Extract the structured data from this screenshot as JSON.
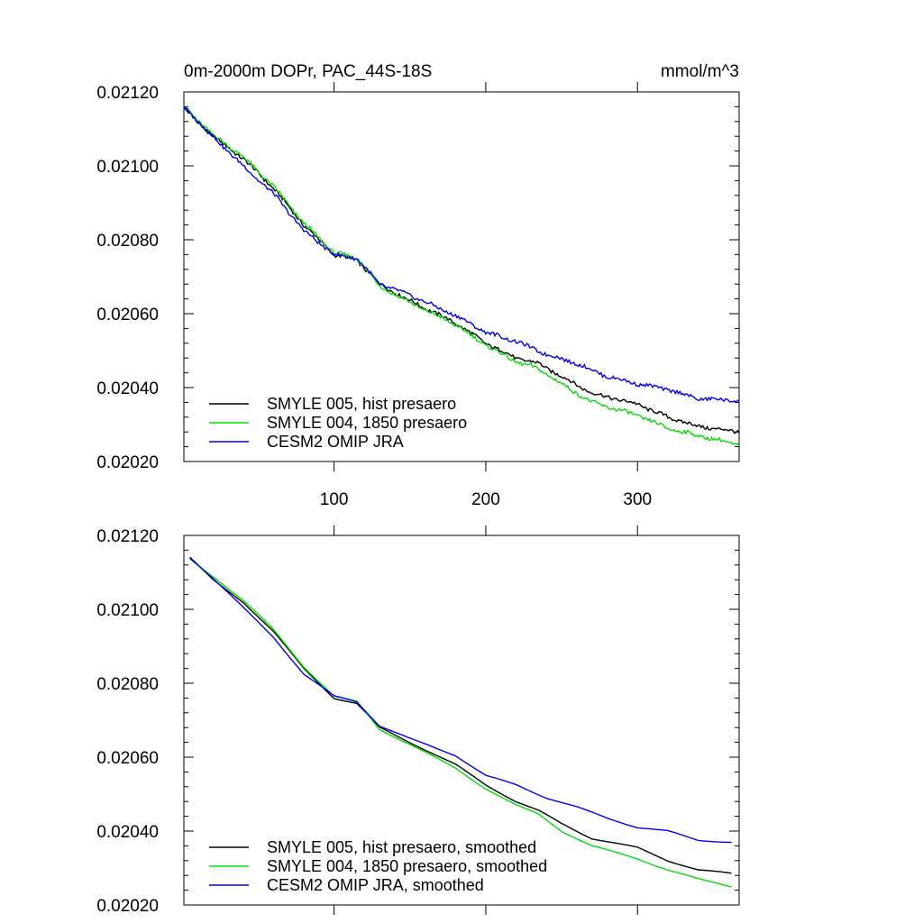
{
  "figure": {
    "title_left": "0m-2000m DOPr, PAC_44S-18S",
    "title_right": "mmol/m^3"
  },
  "chart_data": [
    {
      "type": "line",
      "xlim": [
        1,
        367
      ],
      "ylim": [
        0.0202,
        0.0212
      ],
      "xticks": [
        100,
        200,
        300
      ],
      "xtick_labels": [
        "100",
        "200",
        "300"
      ],
      "show_xtick_labels": true,
      "yticks": [
        0.0202,
        0.0204,
        0.0206,
        0.0208,
        0.021,
        0.0212
      ],
      "ytick_labels": [
        "0.02020",
        "0.02040",
        "0.02060",
        "0.02080",
        "0.02100",
        "0.02120"
      ],
      "grid": false,
      "legend_position": "bottom-left",
      "smoothed": false,
      "series": [
        {
          "name": "SMYLE 005, hist presaero",
          "color": "#000000",
          "x": [
            1,
            20,
            40,
            60,
            80,
            100,
            115,
            130,
            150,
            180,
            200,
            220,
            235,
            250,
            270,
            300,
            320,
            340,
            367
          ],
          "y": [
            0.021155,
            0.02108,
            0.02102,
            0.02094,
            0.02084,
            0.02076,
            0.020745,
            0.02068,
            0.020635,
            0.020575,
            0.02052,
            0.02048,
            0.020465,
            0.02043,
            0.020385,
            0.020355,
            0.02032,
            0.020295,
            0.02028
          ]
        },
        {
          "name": "SMYLE 004, 1850 presaero",
          "color": "#00dd00",
          "x": [
            1,
            20,
            40,
            60,
            80,
            100,
            115,
            130,
            150,
            180,
            200,
            220,
            235,
            250,
            270,
            300,
            320,
            340,
            367
          ],
          "y": [
            0.02116,
            0.021085,
            0.021025,
            0.020945,
            0.020845,
            0.020765,
            0.02075,
            0.020675,
            0.02063,
            0.02057,
            0.020515,
            0.02047,
            0.02045,
            0.02041,
            0.02036,
            0.020325,
            0.02029,
            0.02027,
            0.020245
          ]
        },
        {
          "name": "CESM2 OMIP JRA",
          "color": "#0000ee",
          "x": [
            1,
            20,
            40,
            60,
            80,
            100,
            115,
            130,
            150,
            180,
            200,
            220,
            240,
            260,
            280,
            300,
            320,
            340,
            367
          ],
          "y": [
            0.02116,
            0.02108,
            0.021,
            0.020925,
            0.020825,
            0.02076,
            0.02075,
            0.02068,
            0.02065,
            0.020595,
            0.02055,
            0.020525,
            0.02049,
            0.020465,
            0.02043,
            0.02041,
            0.020395,
            0.02037,
            0.020365
          ]
        }
      ]
    },
    {
      "type": "line",
      "xlim": [
        1,
        367
      ],
      "ylim": [
        0.0202,
        0.0212
      ],
      "xticks": [
        100,
        200,
        300
      ],
      "xtick_labels": [
        "100",
        "200",
        "300"
      ],
      "show_xtick_labels": false,
      "yticks": [
        0.0202,
        0.0204,
        0.0206,
        0.0208,
        0.021,
        0.0212
      ],
      "ytick_labels": [
        "0.02020",
        "0.02040",
        "0.02060",
        "0.02080",
        "0.02100",
        "0.02120"
      ],
      "grid": false,
      "legend_position": "bottom-left",
      "smoothed": true,
      "series": [
        {
          "name": "SMYLE 005, hist presaero, smoothed",
          "color": "#000000",
          "x": [
            5,
            20,
            40,
            60,
            80,
            100,
            115,
            130,
            150,
            180,
            200,
            220,
            235,
            250,
            270,
            300,
            320,
            340,
            362
          ],
          "y": [
            0.02114,
            0.02108,
            0.02102,
            0.02094,
            0.02084,
            0.02076,
            0.020745,
            0.02068,
            0.02064,
            0.02058,
            0.020525,
            0.02048,
            0.020455,
            0.02042,
            0.02038,
            0.020355,
            0.02032,
            0.020295,
            0.020285
          ]
        },
        {
          "name": "SMYLE 004, 1850 presaero, smoothed",
          "color": "#00dd00",
          "x": [
            5,
            20,
            40,
            60,
            80,
            100,
            115,
            130,
            150,
            180,
            200,
            220,
            235,
            250,
            270,
            300,
            320,
            340,
            362
          ],
          "y": [
            0.021135,
            0.02109,
            0.021025,
            0.020945,
            0.020845,
            0.020765,
            0.02075,
            0.020675,
            0.020635,
            0.02057,
            0.020515,
            0.02047,
            0.020445,
            0.0204,
            0.02036,
            0.020325,
            0.020295,
            0.02027,
            0.02025
          ]
        },
        {
          "name": "CESM2 OMIP JRA, smoothed",
          "color": "#0000ee",
          "x": [
            5,
            20,
            40,
            60,
            80,
            100,
            115,
            130,
            150,
            180,
            200,
            220,
            240,
            260,
            280,
            300,
            320,
            340,
            362
          ],
          "y": [
            0.02114,
            0.021085,
            0.021005,
            0.020925,
            0.020825,
            0.020765,
            0.02075,
            0.020685,
            0.02065,
            0.020605,
            0.02055,
            0.020525,
            0.02049,
            0.020465,
            0.020435,
            0.02041,
            0.0204,
            0.020375,
            0.02037
          ]
        }
      ]
    }
  ]
}
